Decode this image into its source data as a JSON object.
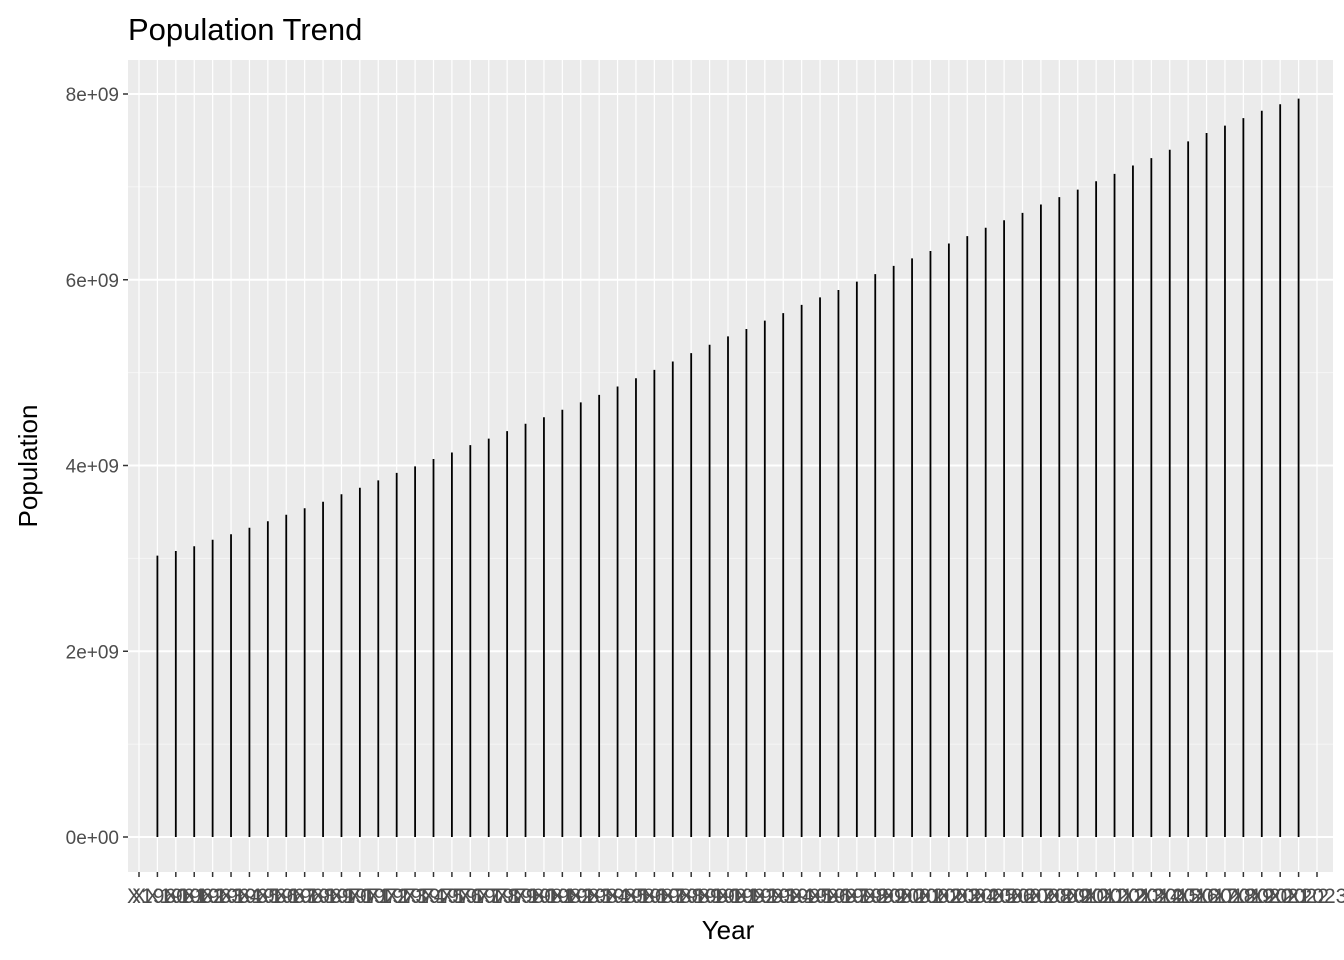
{
  "chart_data": {
    "type": "bar",
    "title": "Population Trend",
    "xlabel": "Year",
    "ylabel": "Population",
    "ylim": [
      -200000000,
      8150000000
    ],
    "y_ticks": [
      0,
      2000000000,
      4000000000,
      6000000000,
      8000000000
    ],
    "y_tick_labels": [
      "0e+00",
      "2e+09",
      "4e+09",
      "6e+09",
      "8e+09"
    ],
    "grid": true,
    "legend": "none",
    "categories": [
      "X",
      "X1960",
      "X1961",
      "X1962",
      "X1963",
      "X1964",
      "X1965",
      "X1966",
      "X1967",
      "X1968",
      "X1969",
      "X1970",
      "X1971",
      "X1972",
      "X1973",
      "X1974",
      "X1975",
      "X1976",
      "X1977",
      "X1978",
      "X1979",
      "X1980",
      "X1981",
      "X1982",
      "X1983",
      "X1984",
      "X1985",
      "X1986",
      "X1987",
      "X1988",
      "X1989",
      "X1990",
      "X1991",
      "X1992",
      "X1993",
      "X1994",
      "X1995",
      "X1996",
      "X1997",
      "X1998",
      "X1999",
      "X2000",
      "X2001",
      "X2002",
      "X2003",
      "X2004",
      "X2005",
      "X2006",
      "X2007",
      "X2008",
      "X2009",
      "X2010",
      "X2011",
      "X2012",
      "X2013",
      "X2014",
      "X2015",
      "X2016",
      "X2017",
      "X2018",
      "X2019",
      "X2020",
      "X2021",
      "X2022",
      "X2023"
    ],
    "values": [
      null,
      3030000000,
      3080000000,
      3130000000,
      3200000000,
      3260000000,
      3330000000,
      3400000000,
      3470000000,
      3540000000,
      3610000000,
      3690000000,
      3760000000,
      3840000000,
      3920000000,
      3990000000,
      4070000000,
      4140000000,
      4220000000,
      4290000000,
      4370000000,
      4450000000,
      4520000000,
      4600000000,
      4680000000,
      4760000000,
      4850000000,
      4940000000,
      5030000000,
      5120000000,
      5210000000,
      5300000000,
      5390000000,
      5470000000,
      5560000000,
      5640000000,
      5730000000,
      5810000000,
      5890000000,
      5980000000,
      6060000000,
      6150000000,
      6230000000,
      6310000000,
      6390000000,
      6470000000,
      6560000000,
      6640000000,
      6720000000,
      6810000000,
      6890000000,
      6970000000,
      7060000000,
      7140000000,
      7230000000,
      7310000000,
      7400000000,
      7490000000,
      7580000000,
      7660000000,
      7740000000,
      7820000000,
      7890000000,
      7950000000,
      null
    ]
  }
}
